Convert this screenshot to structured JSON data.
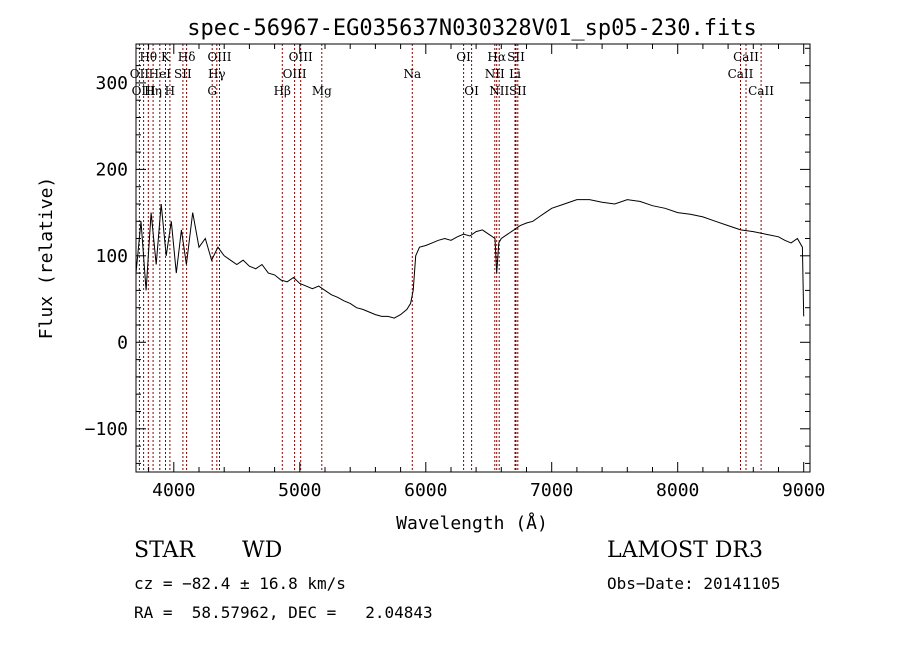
{
  "chart_data": {
    "type": "line",
    "title": "spec-56967-EG035637N030328V01_sp05-230.fits",
    "xlabel": "Wavelength (Å)",
    "ylabel": "Flux (relative)",
    "xlim": [
      3700,
      9050
    ],
    "ylim": [
      -150,
      345
    ],
    "xticks": [
      4000,
      5000,
      6000,
      7000,
      8000,
      9000
    ],
    "yticks": [
      -100,
      0,
      100,
      200,
      300
    ],
    "grid": false,
    "line_color": "#000000",
    "marker_color": "#8b0000",
    "series": [
      {
        "x": [
          3700,
          3740,
          3780,
          3820,
          3860,
          3900,
          3940,
          3980,
          4020,
          4060,
          4100,
          4150,
          4200,
          4250,
          4300,
          4350,
          4400,
          4450,
          4500,
          4550,
          4600,
          4650,
          4700,
          4750,
          4800,
          4850,
          4900,
          4950,
          5000,
          5050,
          5100,
          5150,
          5200,
          5250,
          5300,
          5350,
          5400,
          5450,
          5500,
          5550,
          5600,
          5650,
          5700,
          5750,
          5800,
          5850,
          5880,
          5900,
          5920,
          5950,
          6000,
          6050,
          6100,
          6150,
          6200,
          6250,
          6300,
          6350,
          6400,
          6450,
          6500,
          6550,
          6563,
          6580,
          6600,
          6650,
          6700,
          6750,
          6800,
          6850,
          6900,
          6950,
          7000,
          7100,
          7200,
          7300,
          7400,
          7500,
          7600,
          7700,
          7800,
          7900,
          8000,
          8100,
          8200,
          8300,
          8400,
          8500,
          8600,
          8700,
          8800,
          8850,
          8900,
          8950,
          8990,
          9000
        ],
        "values": [
          80,
          140,
          60,
          150,
          90,
          160,
          100,
          140,
          80,
          130,
          90,
          150,
          110,
          120,
          95,
          110,
          100,
          95,
          90,
          95,
          88,
          85,
          90,
          80,
          78,
          72,
          70,
          75,
          68,
          65,
          62,
          65,
          60,
          55,
          52,
          48,
          45,
          40,
          38,
          35,
          32,
          30,
          30,
          28,
          32,
          38,
          45,
          60,
          100,
          110,
          112,
          115,
          118,
          120,
          118,
          122,
          125,
          123,
          128,
          130,
          125,
          120,
          80,
          115,
          120,
          125,
          130,
          135,
          138,
          140,
          145,
          150,
          155,
          160,
          165,
          165,
          162,
          160,
          165,
          163,
          158,
          155,
          150,
          148,
          145,
          140,
          135,
          130,
          128,
          125,
          122,
          118,
          115,
          120,
          110,
          30
        ]
      }
    ],
    "lines": [
      {
        "label": "Hθ",
        "x": 3798,
        "row": 0
      },
      {
        "label": "OII",
        "x": 3727,
        "row": 1
      },
      {
        "label": "OIII",
        "x": 3760,
        "row": 2
      },
      {
        "label": "Hη",
        "x": 3836,
        "row": 2
      },
      {
        "label": "HeI",
        "x": 3889,
        "row": 1
      },
      {
        "label": "K",
        "x": 3934,
        "row": 0
      },
      {
        "label": "H",
        "x": 3969,
        "row": 2
      },
      {
        "label": "SII",
        "x": 4072,
        "row": 1
      },
      {
        "label": "Hδ",
        "x": 4102,
        "row": 0
      },
      {
        "label": "G",
        "x": 4305,
        "row": 2
      },
      {
        "label": "Hγ",
        "x": 4341,
        "row": 1
      },
      {
        "label": "OIII",
        "x": 4363,
        "row": 0
      },
      {
        "label": "Hβ",
        "x": 4861,
        "row": 2
      },
      {
        "label": "OIII",
        "x": 4959,
        "row": 1
      },
      {
        "label": "OIII",
        "x": 5007,
        "row": 0
      },
      {
        "label": "Mg",
        "x": 5175,
        "row": 2
      },
      {
        "label": "Na",
        "x": 5893,
        "row": 1
      },
      {
        "label": "OI",
        "x": 6300,
        "row": 0
      },
      {
        "label": "OI",
        "x": 6364,
        "row": 2
      },
      {
        "label": "NII",
        "x": 6548,
        "row": 1
      },
      {
        "label": "Hα",
        "x": 6563,
        "row": 0
      },
      {
        "label": "NII",
        "x": 6583,
        "row": 2
      },
      {
        "label": "Li",
        "x": 6708,
        "row": 1
      },
      {
        "label": "SII",
        "x": 6716,
        "row": 0
      },
      {
        "label": "SII",
        "x": 6731,
        "row": 2
      },
      {
        "label": "CaII",
        "x": 8498,
        "row": 1
      },
      {
        "label": "CaII",
        "x": 8542,
        "row": 0
      },
      {
        "label": "CaII",
        "x": 8662,
        "row": 2
      }
    ]
  },
  "info": {
    "class_label": "STAR",
    "subclass_label": "WD",
    "survey": "LAMOST DR3",
    "cz": "cz = −82.4 ± 16.8 km/s",
    "obs_date": "Obs−Date: 20141105",
    "radec": "RA =  58.57962, DEC =   2.04843"
  }
}
